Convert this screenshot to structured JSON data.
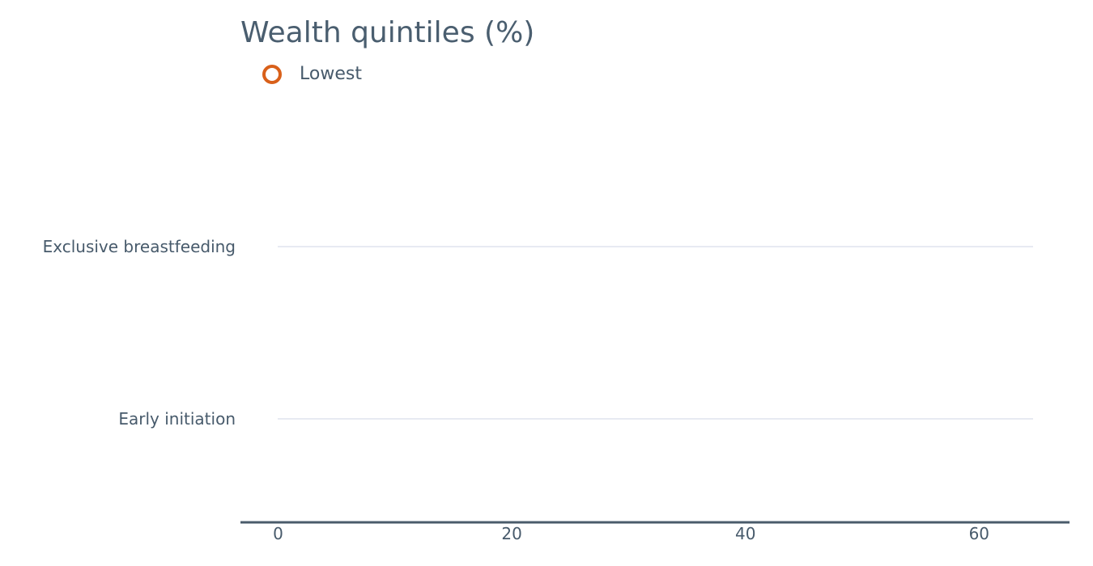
{
  "chart_data": {
    "type": "dot",
    "title": "Wealth quintiles (%)",
    "categories": [
      "Exclusive breastfeeding",
      "Early initiation"
    ],
    "series": [
      {
        "name": "Lowest",
        "values": [
          null,
          null
        ],
        "color": "#d9601a"
      }
    ],
    "x_ticks": [
      0,
      20,
      40,
      60
    ],
    "xlim": [
      -3.2,
      67.8
    ],
    "grid": "category lines",
    "legend_position": "top-left"
  }
}
